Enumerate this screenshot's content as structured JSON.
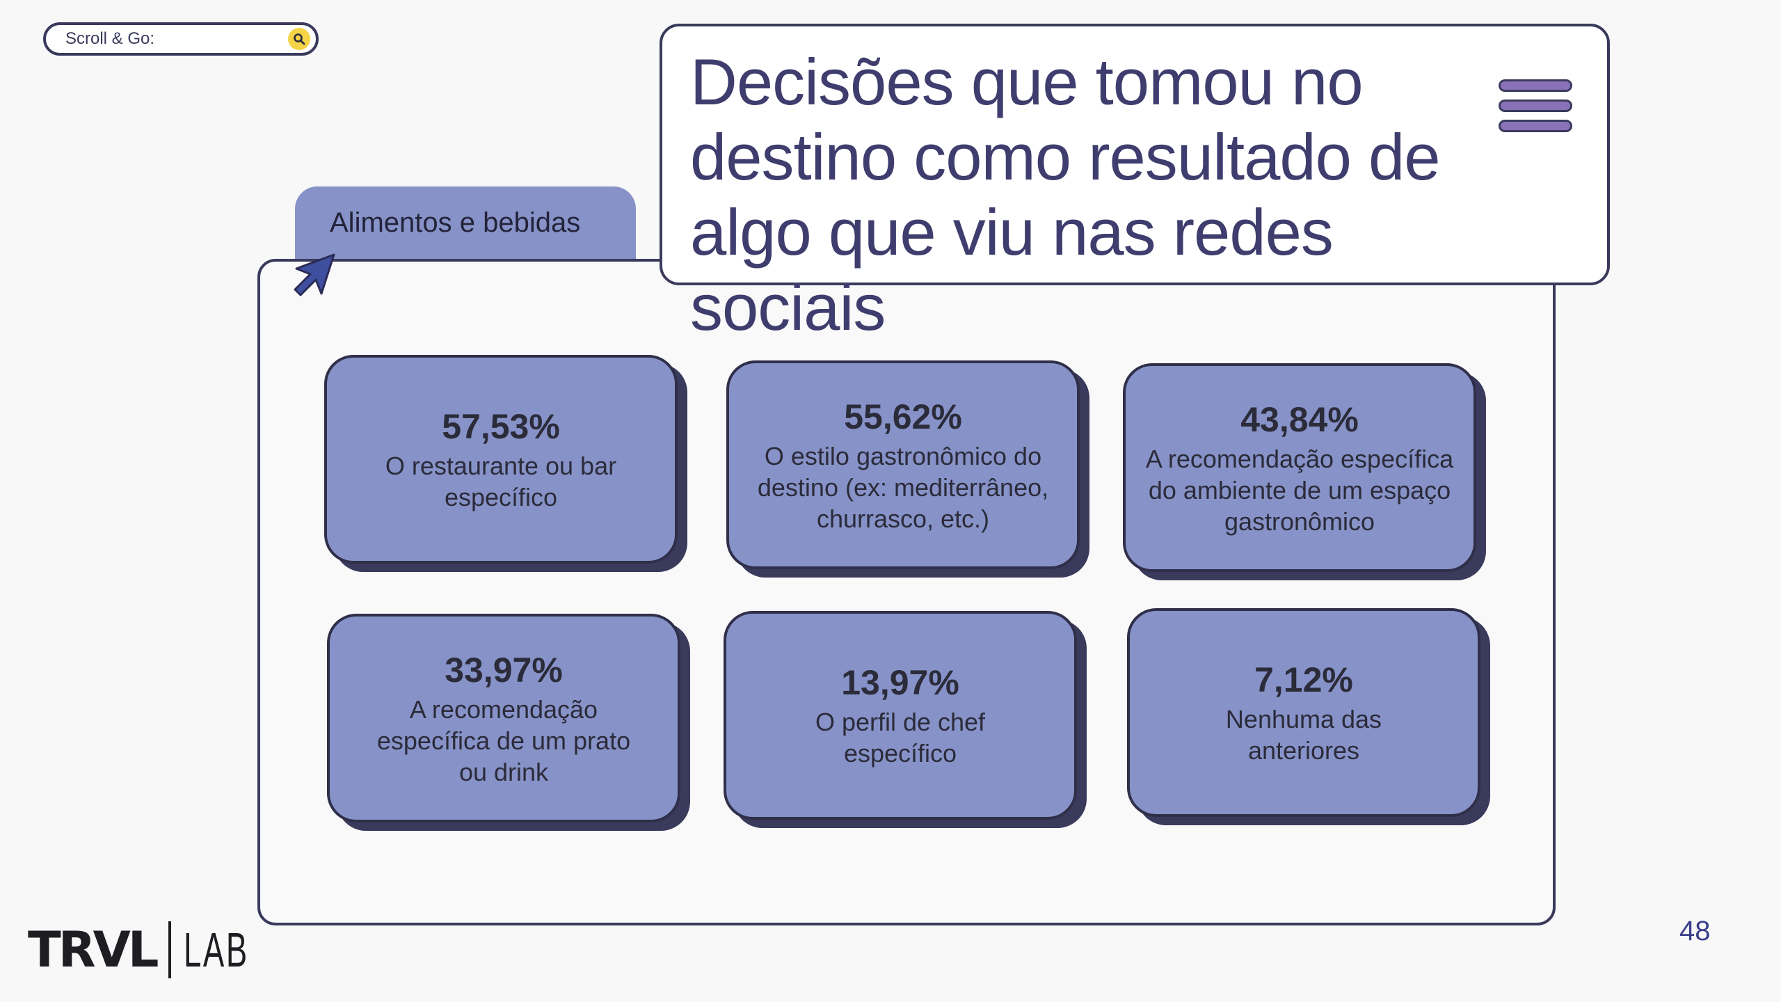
{
  "search": {
    "label": "Scroll & Go:"
  },
  "title": "Decisões que tomou no destino como resultado de algo que viu nas redes sociais",
  "tab": {
    "label": "Alimentos e bebidas"
  },
  "cards": [
    {
      "value": "57,53%",
      "label": "O restaurante ou bar específico"
    },
    {
      "value": "55,62%",
      "label": "O estilo gastronômico do destino (ex: mediterrâneo, churrasco, etc.)"
    },
    {
      "value": "43,84%",
      "label": "A recomendação específica do ambiente de um espaço gastronômico"
    },
    {
      "value": "33,97%",
      "label": "A recomendação específica de um prato ou drink"
    },
    {
      "value": "13,97%",
      "label": "O perfil de chef específico"
    },
    {
      "value": "7,12%",
      "label": "Nenhuma das anteriores"
    }
  ],
  "logo": {
    "primary": "TRVL",
    "secondary": "LAB"
  },
  "page_number": "48",
  "colors": {
    "card_fill": "#8793c8",
    "outline": "#3a3a5c",
    "title_text": "#3f3d6e",
    "menu_bars": "#8a72b8",
    "search_button": "#f5d547",
    "page_number": "#3a3f8a"
  }
}
